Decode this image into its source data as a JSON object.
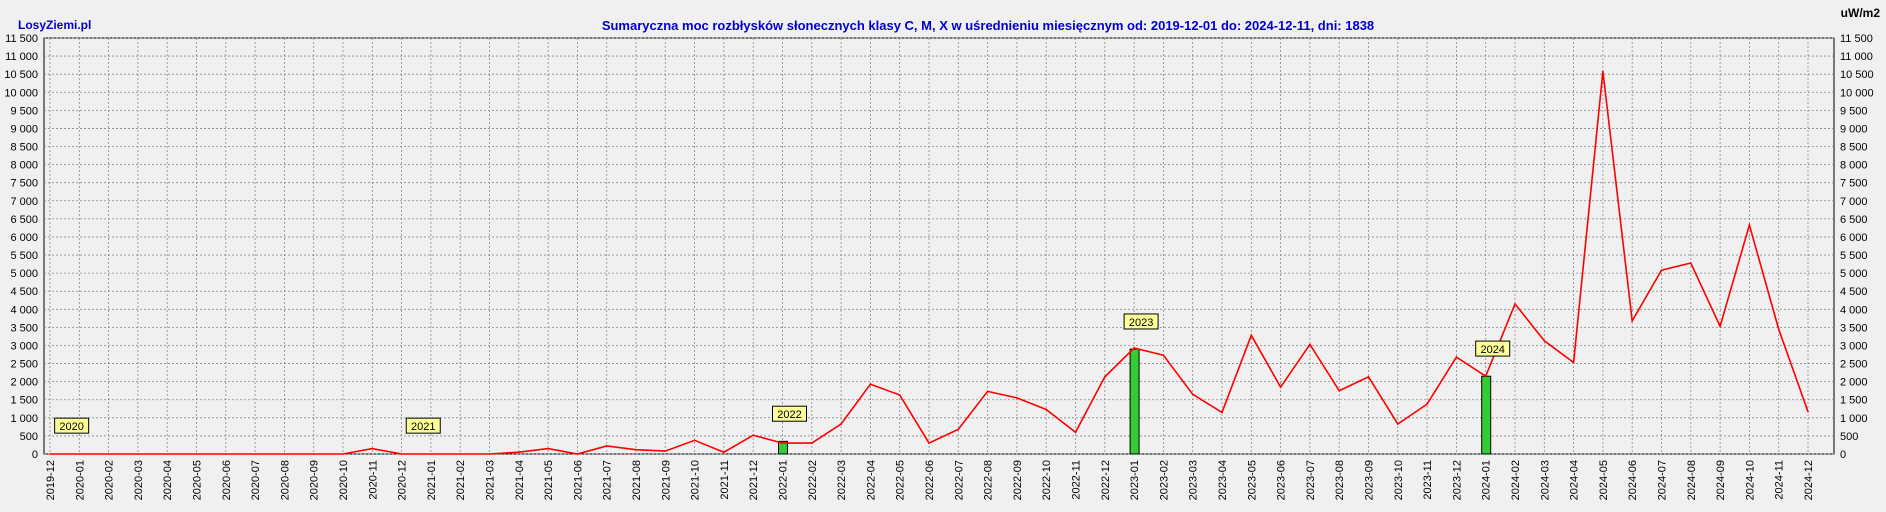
{
  "brand": "LosyZiemi.pl",
  "unit": "uW/m2",
  "chart_data": {
    "type": "line",
    "title": "Sumaryczna moc rozbłysków słonecznych klasy C, M, X w uśrednieniu miesięcznym od: 2019-12-01 do: 2024-12-11, dni: 1838",
    "xlabel": "",
    "ylabel": "",
    "ylim": [
      0,
      11500
    ],
    "yticks": [
      0,
      500,
      1000,
      1500,
      2000,
      2500,
      3000,
      3500,
      4000,
      4500,
      5000,
      5500,
      6000,
      6500,
      7000,
      7500,
      8000,
      8500,
      9000,
      9500,
      10000,
      10500,
      11000,
      11500
    ],
    "ytick_labels": [
      "0",
      "500",
      "1 000",
      "1 500",
      "2 000",
      "2 500",
      "3 000",
      "3 500",
      "4 000",
      "4 500",
      "5 000",
      "5 500",
      "6 000",
      "6 500",
      "7 000",
      "7 500",
      "8 000",
      "8 500",
      "9 000",
      "9 500",
      "10 000",
      "10 500",
      "11 000",
      "11 500"
    ],
    "grid": true,
    "categories": [
      "2019-12",
      "2020-01",
      "2020-02",
      "2020-03",
      "2020-04",
      "2020-05",
      "2020-06",
      "2020-07",
      "2020-08",
      "2020-09",
      "2020-10",
      "2020-11",
      "2020-12",
      "2021-01",
      "2021-02",
      "2021-03",
      "2021-04",
      "2021-05",
      "2021-06",
      "2021-07",
      "2021-08",
      "2021-09",
      "2021-10",
      "2021-11",
      "2021-12",
      "2022-01",
      "2022-02",
      "2022-03",
      "2022-04",
      "2022-05",
      "2022-06",
      "2022-07",
      "2022-08",
      "2022-09",
      "2022-10",
      "2022-11",
      "2022-12",
      "2023-01",
      "2023-02",
      "2023-03",
      "2023-04",
      "2023-05",
      "2023-06",
      "2023-07",
      "2023-08",
      "2023-09",
      "2023-10",
      "2023-11",
      "2023-12",
      "2024-01",
      "2024-02",
      "2024-03",
      "2024-04",
      "2024-05",
      "2024-06",
      "2024-07",
      "2024-08",
      "2024-09",
      "2024-10",
      "2024-11",
      "2024-12"
    ],
    "series": [
      {
        "color": "#ff0000",
        "values": [
          0,
          0,
          0,
          0,
          0,
          0,
          0,
          0,
          0,
          0,
          0,
          150,
          0,
          0,
          0,
          0,
          50,
          150,
          0,
          220,
          120,
          80,
          380,
          50,
          520,
          300,
          300,
          830,
          1930,
          1630,
          300,
          680,
          1730,
          1550,
          1230,
          600,
          2130,
          2930,
          2730,
          1650,
          1150,
          3280,
          1850,
          3030,
          1750,
          2130,
          830,
          1380,
          2680,
          2150,
          4150,
          3130,
          2530,
          10580,
          3680,
          5080,
          5280,
          3530,
          6330,
          3450,
          1170
        ]
      }
    ],
    "year_markers": [
      {
        "label": "2020",
        "x_index": 0.5,
        "y_value": 770,
        "bar": 0
      },
      {
        "label": "2021",
        "x_index": 12.5,
        "y_value": 770,
        "bar": 0
      },
      {
        "label": "2022",
        "x_index": 25,
        "y_value": 1100,
        "bar": 350
      },
      {
        "label": "2023",
        "x_index": 37,
        "y_value": 3650,
        "bar": 2900
      },
      {
        "label": "2024",
        "x_index": 49,
        "y_value": 2900,
        "bar": 2150
      }
    ],
    "colors": {
      "line": "#ff0000",
      "bar": "#33cc33",
      "marker_bg": "#ffff99",
      "grid": "#888888"
    }
  }
}
